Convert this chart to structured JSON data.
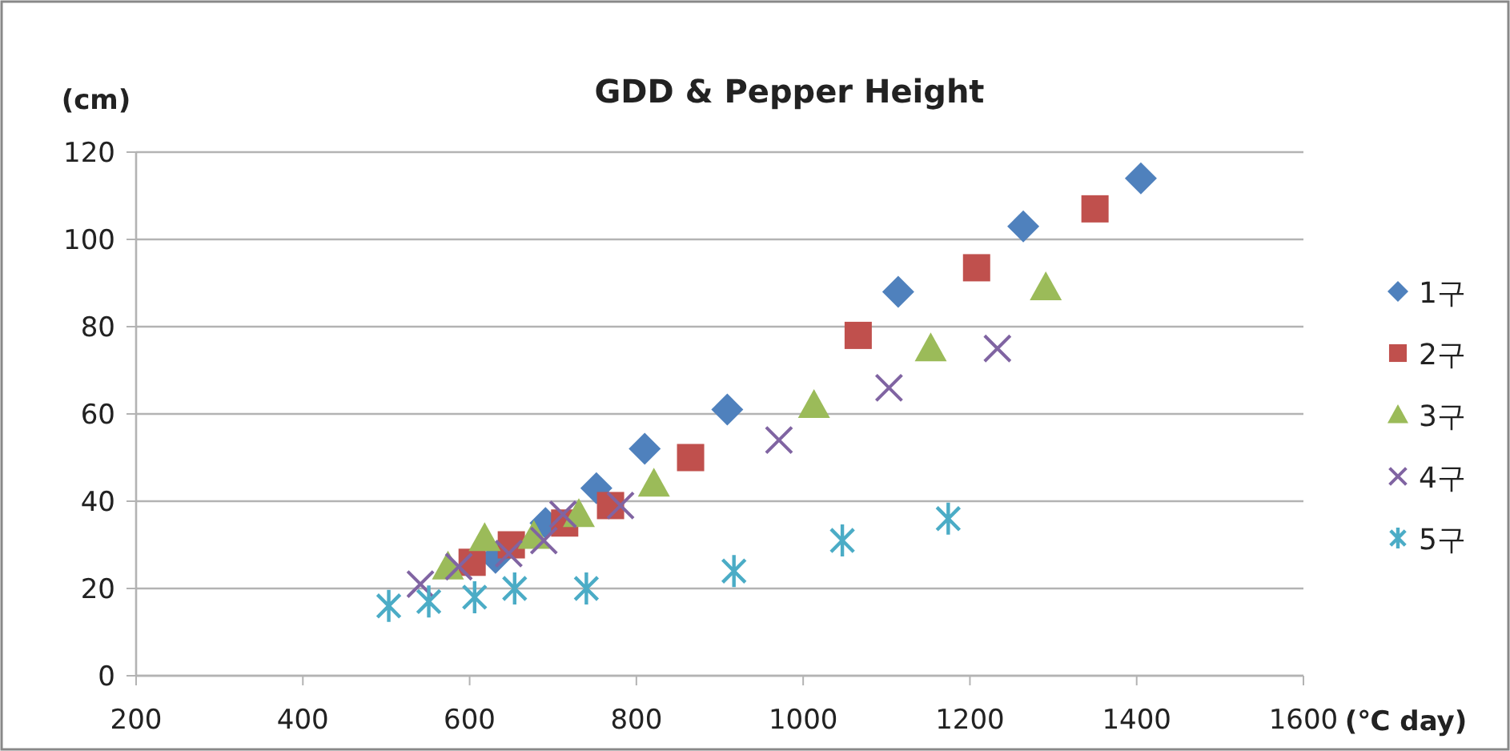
{
  "chart_data": {
    "type": "scatter",
    "title": "GDD & Pepper Height",
    "xlabel": "(℃ day)",
    "ylabel": "(cm)",
    "xlim": [
      200,
      1600
    ],
    "xticks": [
      200,
      400,
      600,
      800,
      1000,
      1200,
      1400,
      1600
    ],
    "ylim": [
      0,
      120
    ],
    "yticks": [
      0,
      20,
      40,
      60,
      80,
      100,
      120
    ],
    "grid": "y",
    "legend": "right",
    "series": [
      {
        "name": "1구",
        "color": "#4f81bd",
        "marker": "diamond",
        "x": [
          1405,
          1264,
          1114,
          909,
          810,
          752,
          691,
          631
        ],
        "values": [
          114,
          103,
          88,
          61,
          52,
          43,
          35,
          27
        ]
      },
      {
        "name": "2구",
        "color": "#c0504d",
        "marker": "square",
        "x": [
          1350,
          1208,
          1066,
          865,
          769,
          714,
          650,
          603
        ],
        "values": [
          107,
          93.5,
          78,
          50,
          39,
          35,
          30,
          26
        ]
      },
      {
        "name": "3구",
        "color": "#9bbb59",
        "marker": "triangle",
        "x": [
          1291,
          1153,
          1013,
          821,
          731,
          677,
          618,
          574
        ],
        "values": [
          89,
          75,
          62,
          44,
          37,
          32,
          31.5,
          25
        ]
      },
      {
        "name": "4구",
        "color": "#8064a2",
        "marker": "cross",
        "x": [
          1233,
          1103,
          971,
          781,
          712,
          689,
          647,
          587,
          541
        ],
        "values": [
          75,
          66,
          54,
          39,
          37,
          31,
          28,
          25,
          21
        ]
      },
      {
        "name": "5구",
        "color": "#4bacc6",
        "marker": "star",
        "x": [
          1174,
          1047,
          917,
          740,
          654,
          606,
          551,
          503
        ],
        "values": [
          36,
          31,
          24,
          20,
          20,
          18,
          17,
          16
        ]
      }
    ]
  }
}
